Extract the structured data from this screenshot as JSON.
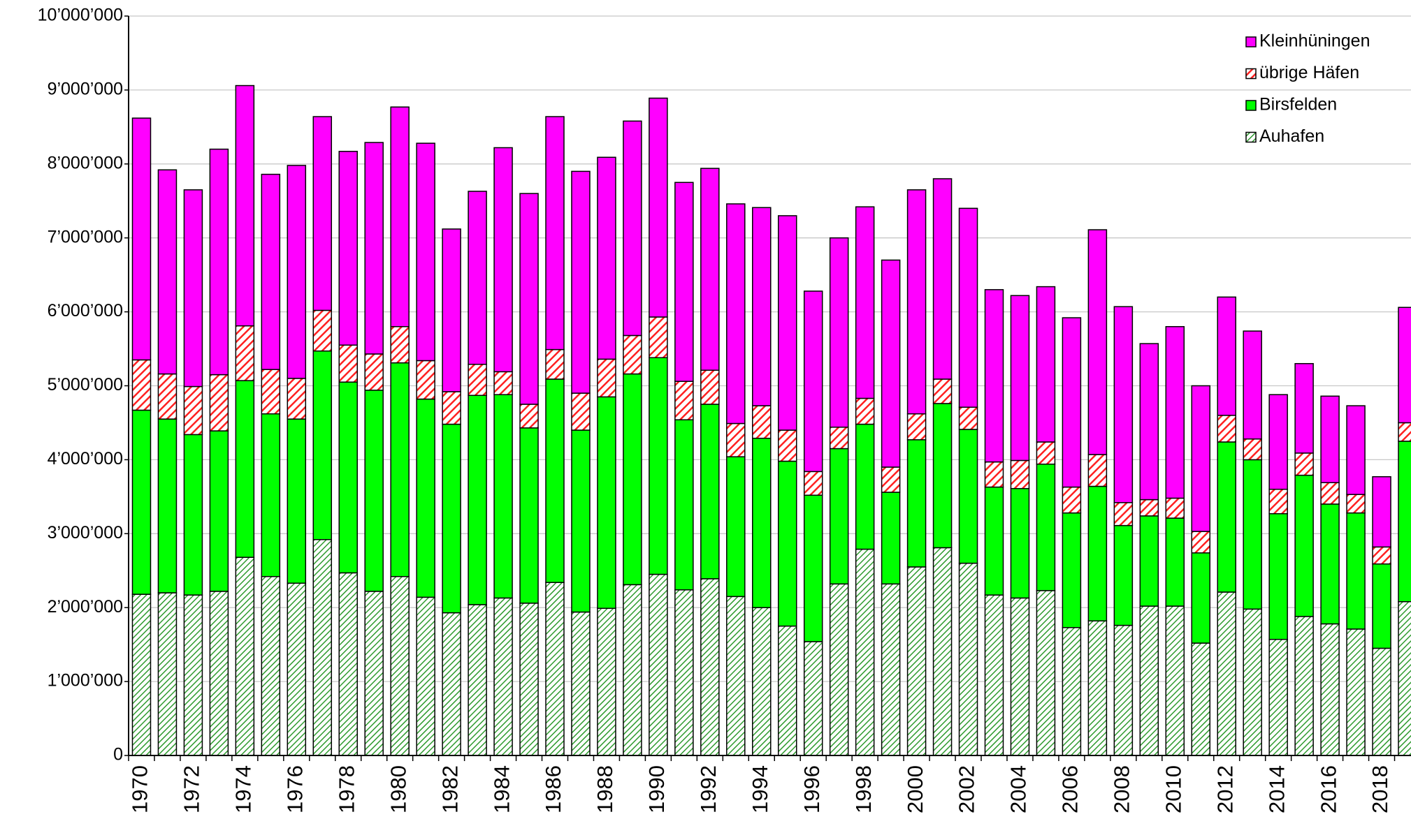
{
  "chart_data": {
    "type": "stacked-bar",
    "categories": [
      "1970",
      null,
      "1972",
      null,
      "1974",
      null,
      "1976",
      null,
      "1978",
      null,
      "1980",
      null,
      "1982",
      null,
      "1984",
      null,
      "1986",
      null,
      "1988",
      null,
      "1990",
      null,
      "1992",
      null,
      "1994",
      null,
      "1996",
      null,
      "1998",
      null,
      "2000",
      null,
      "2002",
      null,
      "2004",
      null,
      "2006",
      null,
      "2008",
      null,
      "2010",
      null,
      "2012",
      null,
      "2014",
      null,
      "2016",
      null,
      "2018",
      null
    ],
    "series": [
      {
        "name": "Auhafen",
        "color": "#2e9a2e",
        "hatch": true,
        "values": [
          2180000,
          2200000,
          2170000,
          2220000,
          2680000,
          2420000,
          2330000,
          2920000,
          2470000,
          2220000,
          2420000,
          2140000,
          1930000,
          2040000,
          2130000,
          2060000,
          2340000,
          1940000,
          1990000,
          2310000,
          2450000,
          2240000,
          2390000,
          2150000,
          2000000,
          1750000,
          1540000,
          2320000,
          2790000,
          2320000,
          2550000,
          2810000,
          2600000,
          2170000,
          2130000,
          2230000,
          1730000,
          1820000,
          1760000,
          2020000,
          2020000,
          1520000,
          2210000,
          1980000,
          1570000,
          1880000,
          1780000,
          1710000,
          1450000,
          2080000
        ]
      },
      {
        "name": "Birsfelden",
        "color": "#00ff00",
        "hatch": false,
        "values": [
          2490000,
          2350000,
          2170000,
          2170000,
          2390000,
          2200000,
          2220000,
          2550000,
          2580000,
          2720000,
          2890000,
          2680000,
          2550000,
          2830000,
          2750000,
          2370000,
          2750000,
          2460000,
          2860000,
          2850000,
          2930000,
          2300000,
          2360000,
          1890000,
          2290000,
          2230000,
          1980000,
          1830000,
          1690000,
          1240000,
          1720000,
          1950000,
          1810000,
          1460000,
          1480000,
          1710000,
          1550000,
          1820000,
          1350000,
          1220000,
          1190000,
          1220000,
          2030000,
          2020000,
          1700000,
          1910000,
          1620000,
          1570000,
          1140000,
          2170000
        ]
      },
      {
        "name": "übrige Häfen",
        "color": "#ff2020",
        "hatch": true,
        "values": [
          680000,
          610000,
          650000,
          760000,
          740000,
          600000,
          550000,
          550000,
          500000,
          490000,
          490000,
          520000,
          440000,
          420000,
          310000,
          320000,
          400000,
          500000,
          510000,
          520000,
          550000,
          520000,
          460000,
          450000,
          440000,
          420000,
          320000,
          290000,
          350000,
          340000,
          350000,
          330000,
          300000,
          340000,
          380000,
          300000,
          350000,
          430000,
          310000,
          220000,
          270000,
          290000,
          360000,
          280000,
          330000,
          300000,
          290000,
          250000,
          230000,
          250000
        ]
      },
      {
        "name": "Kleinhüningen",
        "color": "#ff00ff",
        "hatch": false,
        "values": [
          3270000,
          2760000,
          2660000,
          3050000,
          3250000,
          2640000,
          2880000,
          2620000,
          2620000,
          2860000,
          2970000,
          2940000,
          2200000,
          2340000,
          3030000,
          2850000,
          3150000,
          3000000,
          2730000,
          2900000,
          2960000,
          2690000,
          2730000,
          2970000,
          2680000,
          2900000,
          2440000,
          2560000,
          2590000,
          2800000,
          3030000,
          2710000,
          2690000,
          2330000,
          2230000,
          2100000,
          2290000,
          3040000,
          2650000,
          2110000,
          2320000,
          1970000,
          1600000,
          1460000,
          1280000,
          1210000,
          1170000,
          1200000,
          950000,
          1560000
        ]
      }
    ],
    "ylim": [
      0,
      10000000
    ],
    "yticks": [
      0,
      {
        "value": 1000000,
        "label": "1’000’000"
      },
      {
        "value": 2000000,
        "label": "2’000’000"
      },
      {
        "value": 3000000,
        "label": "3’000’000"
      },
      {
        "value": 4000000,
        "label": "4’000’000"
      },
      {
        "value": 5000000,
        "label": "5’000’000"
      },
      {
        "value": 6000000,
        "label": "6’000’000"
      },
      {
        "value": 7000000,
        "label": "7’000’000"
      },
      {
        "value": 8000000,
        "label": "8’000’000"
      },
      {
        "value": 9000000,
        "label": "9’000’000"
      },
      {
        "value": 10000000,
        "label": "10’000’000"
      }
    ],
    "grid": true,
    "legend": "top-right"
  }
}
